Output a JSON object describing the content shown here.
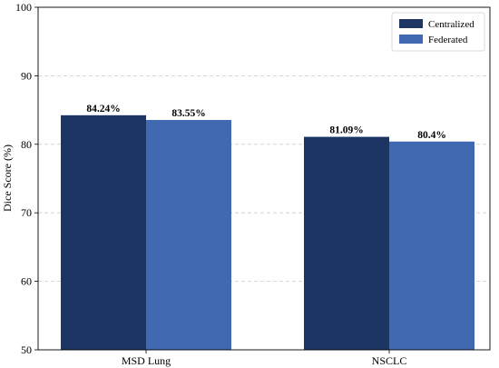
{
  "chart_data": {
    "type": "bar",
    "categories": [
      "MSD Lung",
      "NSCLC"
    ],
    "series": [
      {
        "name": "Centralized",
        "values": [
          84.24,
          81.09
        ],
        "labels": [
          "84.24%",
          "81.09%"
        ],
        "color": "#1c3563"
      },
      {
        "name": "Federated",
        "values": [
          83.55,
          80.4
        ],
        "labels": [
          "83.55%",
          "80.4%"
        ],
        "color": "#4169b1"
      }
    ],
    "xlabel": "",
    "ylabel": "Dice Score (%)",
    "ylim": [
      50,
      100
    ],
    "yticks": [
      50,
      60,
      70,
      80,
      90,
      100
    ],
    "grid": true,
    "legend_position": "top-right"
  }
}
